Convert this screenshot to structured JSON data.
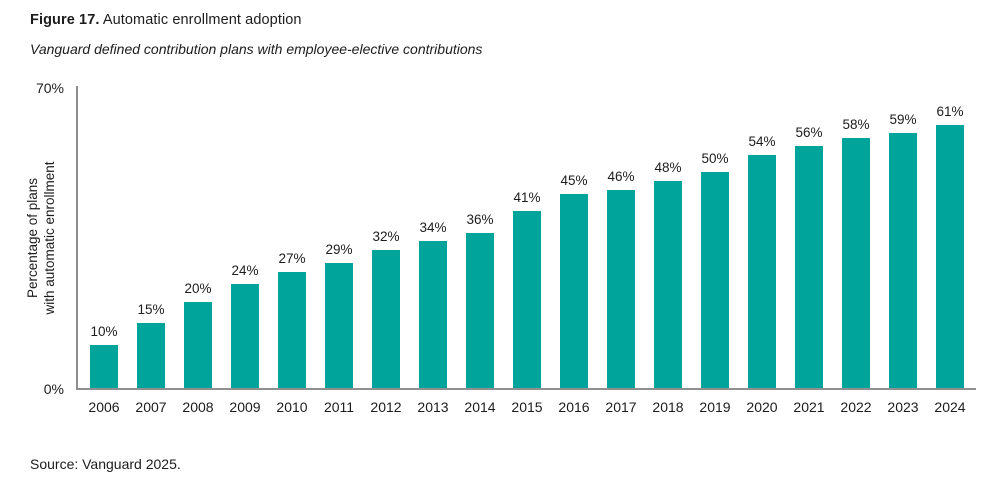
{
  "figure": {
    "label": "Figure 17.",
    "title": " Automatic enrollment adoption",
    "subtitle": "Vanguard defined contribution plans with employee-elective contributions",
    "source": "Source: Vanguard 2025."
  },
  "axis": {
    "ylabel_line1": "Percentage of plans",
    "ylabel_line2": "with automatic enrollment",
    "ytick_top": "70%",
    "ytick_bottom": "0%"
  },
  "chart_data": {
    "type": "bar",
    "title": "Automatic enrollment adoption",
    "subtitle": "Vanguard defined contribution plans with employee-elective contributions",
    "categories": [
      "2006",
      "2007",
      "2008",
      "2009",
      "2010",
      "2011",
      "2012",
      "2013",
      "2014",
      "2015",
      "2016",
      "2017",
      "2018",
      "2019",
      "2020",
      "2021",
      "2022",
      "2023",
      "2024"
    ],
    "values": [
      10,
      15,
      20,
      24,
      27,
      29,
      32,
      34,
      36,
      41,
      45,
      46,
      48,
      50,
      54,
      56,
      58,
      59,
      61
    ],
    "value_suffix": "%",
    "xlabel": "",
    "ylabel": "Percentage of plans with automatic enrollment",
    "ylim": [
      0,
      70
    ],
    "yticks_shown": [
      "0%",
      "70%"
    ],
    "grid": false,
    "legend": false,
    "bar_color": "#00a49a",
    "axis_color": "#8f8f8f",
    "source": "Source: Vanguard 2025."
  }
}
